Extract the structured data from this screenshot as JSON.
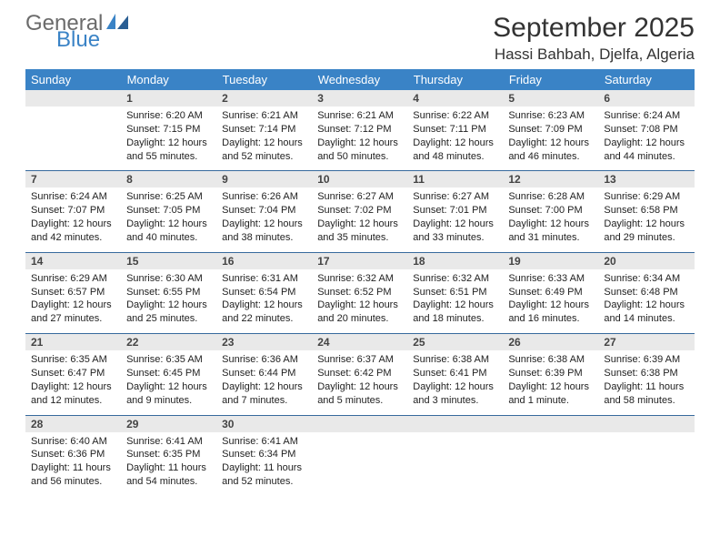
{
  "logo": {
    "word1": "General",
    "word2": "Blue"
  },
  "colors": {
    "header_bg": "#3a83c6",
    "header_text": "#ffffff",
    "daynum_bg": "#e9e9e9",
    "rule": "#376a9d",
    "logo_gray": "#6b6b6b",
    "logo_blue": "#3a83c6"
  },
  "title": "September 2025",
  "location": "Hassi Bahbah, Djelfa, Algeria",
  "weekdays": [
    "Sunday",
    "Monday",
    "Tuesday",
    "Wednesday",
    "Thursday",
    "Friday",
    "Saturday"
  ],
  "weeks": [
    [
      null,
      {
        "n": "1",
        "sunrise": "6:20 AM",
        "sunset": "7:15 PM",
        "daylight": "12 hours and 55 minutes."
      },
      {
        "n": "2",
        "sunrise": "6:21 AM",
        "sunset": "7:14 PM",
        "daylight": "12 hours and 52 minutes."
      },
      {
        "n": "3",
        "sunrise": "6:21 AM",
        "sunset": "7:12 PM",
        "daylight": "12 hours and 50 minutes."
      },
      {
        "n": "4",
        "sunrise": "6:22 AM",
        "sunset": "7:11 PM",
        "daylight": "12 hours and 48 minutes."
      },
      {
        "n": "5",
        "sunrise": "6:23 AM",
        "sunset": "7:09 PM",
        "daylight": "12 hours and 46 minutes."
      },
      {
        "n": "6",
        "sunrise": "6:24 AM",
        "sunset": "7:08 PM",
        "daylight": "12 hours and 44 minutes."
      }
    ],
    [
      {
        "n": "7",
        "sunrise": "6:24 AM",
        "sunset": "7:07 PM",
        "daylight": "12 hours and 42 minutes."
      },
      {
        "n": "8",
        "sunrise": "6:25 AM",
        "sunset": "7:05 PM",
        "daylight": "12 hours and 40 minutes."
      },
      {
        "n": "9",
        "sunrise": "6:26 AM",
        "sunset": "7:04 PM",
        "daylight": "12 hours and 38 minutes."
      },
      {
        "n": "10",
        "sunrise": "6:27 AM",
        "sunset": "7:02 PM",
        "daylight": "12 hours and 35 minutes."
      },
      {
        "n": "11",
        "sunrise": "6:27 AM",
        "sunset": "7:01 PM",
        "daylight": "12 hours and 33 minutes."
      },
      {
        "n": "12",
        "sunrise": "6:28 AM",
        "sunset": "7:00 PM",
        "daylight": "12 hours and 31 minutes."
      },
      {
        "n": "13",
        "sunrise": "6:29 AM",
        "sunset": "6:58 PM",
        "daylight": "12 hours and 29 minutes."
      }
    ],
    [
      {
        "n": "14",
        "sunrise": "6:29 AM",
        "sunset": "6:57 PM",
        "daylight": "12 hours and 27 minutes."
      },
      {
        "n": "15",
        "sunrise": "6:30 AM",
        "sunset": "6:55 PM",
        "daylight": "12 hours and 25 minutes."
      },
      {
        "n": "16",
        "sunrise": "6:31 AM",
        "sunset": "6:54 PM",
        "daylight": "12 hours and 22 minutes."
      },
      {
        "n": "17",
        "sunrise": "6:32 AM",
        "sunset": "6:52 PM",
        "daylight": "12 hours and 20 minutes."
      },
      {
        "n": "18",
        "sunrise": "6:32 AM",
        "sunset": "6:51 PM",
        "daylight": "12 hours and 18 minutes."
      },
      {
        "n": "19",
        "sunrise": "6:33 AM",
        "sunset": "6:49 PM",
        "daylight": "12 hours and 16 minutes."
      },
      {
        "n": "20",
        "sunrise": "6:34 AM",
        "sunset": "6:48 PM",
        "daylight": "12 hours and 14 minutes."
      }
    ],
    [
      {
        "n": "21",
        "sunrise": "6:35 AM",
        "sunset": "6:47 PM",
        "daylight": "12 hours and 12 minutes."
      },
      {
        "n": "22",
        "sunrise": "6:35 AM",
        "sunset": "6:45 PM",
        "daylight": "12 hours and 9 minutes."
      },
      {
        "n": "23",
        "sunrise": "6:36 AM",
        "sunset": "6:44 PM",
        "daylight": "12 hours and 7 minutes."
      },
      {
        "n": "24",
        "sunrise": "6:37 AM",
        "sunset": "6:42 PM",
        "daylight": "12 hours and 5 minutes."
      },
      {
        "n": "25",
        "sunrise": "6:38 AM",
        "sunset": "6:41 PM",
        "daylight": "12 hours and 3 minutes."
      },
      {
        "n": "26",
        "sunrise": "6:38 AM",
        "sunset": "6:39 PM",
        "daylight": "12 hours and 1 minute."
      },
      {
        "n": "27",
        "sunrise": "6:39 AM",
        "sunset": "6:38 PM",
        "daylight": "11 hours and 58 minutes."
      }
    ],
    [
      {
        "n": "28",
        "sunrise": "6:40 AM",
        "sunset": "6:36 PM",
        "daylight": "11 hours and 56 minutes."
      },
      {
        "n": "29",
        "sunrise": "6:41 AM",
        "sunset": "6:35 PM",
        "daylight": "11 hours and 54 minutes."
      },
      {
        "n": "30",
        "sunrise": "6:41 AM",
        "sunset": "6:34 PM",
        "daylight": "11 hours and 52 minutes."
      },
      null,
      null,
      null,
      null
    ]
  ],
  "labels": {
    "sunrise": "Sunrise:",
    "sunset": "Sunset:",
    "daylight": "Daylight:"
  }
}
